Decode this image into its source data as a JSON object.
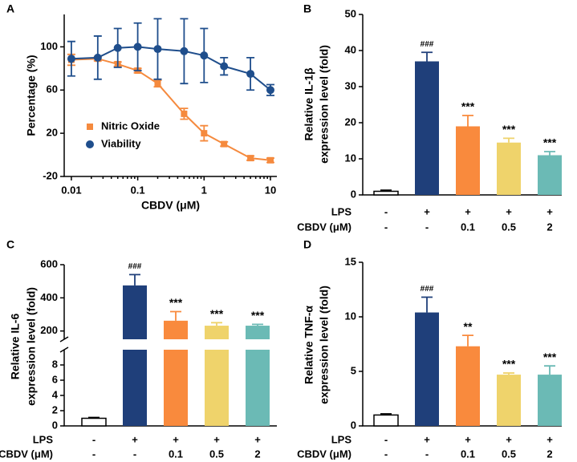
{
  "chart_data": [
    {
      "type": "scatter",
      "label": "A",
      "xlabel": "CBDV (μM)",
      "ylabel": [
        "Percentage (%)"
      ],
      "x": [
        0.01,
        0.025,
        0.05,
        0.1,
        0.2,
        0.5,
        1,
        2,
        5,
        10
      ],
      "xscale": "log",
      "xlim": [
        0.0078,
        12.5
      ],
      "xticks": [
        0.01,
        0.1,
        1,
        10
      ],
      "ylim": [
        -20,
        130
      ],
      "yticks": [
        -20,
        20,
        60,
        100
      ],
      "legend": "lower left",
      "series": [
        {
          "name": "Nitric Oxide",
          "color": "#f58a3e",
          "marker": "square",
          "values": [
            88,
            89,
            84,
            78,
            66,
            38,
            20,
            10,
            -3,
            -5
          ],
          "errors": [
            5,
            2,
            2,
            2,
            3,
            5,
            7,
            2,
            2,
            2
          ]
        },
        {
          "name": "Viability",
          "color": "#1f4e8c",
          "marker": "circle",
          "values": [
            89,
            90,
            99,
            100,
            98,
            96,
            92,
            82,
            75,
            60
          ],
          "errors": [
            16,
            20,
            18,
            22,
            28,
            30,
            25,
            8,
            15,
            5
          ]
        }
      ]
    },
    {
      "type": "bar",
      "label": "B",
      "ylabel": [
        "Relative IL-1β",
        "expression level (fold)"
      ],
      "ylim": [
        0,
        50
      ],
      "yticks": [
        0,
        10,
        20,
        30,
        40,
        50
      ],
      "values": [
        1,
        37,
        19,
        14.5,
        11
      ],
      "errors": [
        0.3,
        2.5,
        3,
        1.2,
        1
      ],
      "colors": [
        "#ffffff",
        "#1f3f7a",
        "#f98a3d",
        "#efd36b",
        "#6bbab5"
      ],
      "annotations": [
        null,
        "###",
        "***",
        "***",
        "***"
      ],
      "treatments": [
        {
          "label": "LPS",
          "values": [
            "-",
            "+",
            "+",
            "+",
            "+"
          ]
        },
        {
          "label": "CBDV (μM)",
          "values": [
            "-",
            "-",
            "0.1",
            "0.5",
            "2"
          ]
        }
      ]
    },
    {
      "type": "broken_bar",
      "label": "C",
      "ylabel": [
        "Relative IL-6",
        "expression level (fold)"
      ],
      "ylim_lower": [
        0,
        10
      ],
      "yticks_lower": [
        0,
        2,
        4,
        6,
        8
      ],
      "ylim_upper": [
        150,
        600
      ],
      "yticks_upper": [
        200,
        400,
        600
      ],
      "values": [
        1,
        475,
        262,
        232,
        232
      ],
      "errors": [
        0.1,
        65,
        55,
        18,
        8
      ],
      "colors": [
        "#ffffff",
        "#1f3f7a",
        "#f98a3d",
        "#efd36b",
        "#6bbab5"
      ],
      "annotations": [
        null,
        "###",
        "***",
        "***",
        "***"
      ],
      "treatments": [
        {
          "label": "LPS",
          "values": [
            "-",
            "+",
            "+",
            "+",
            "+"
          ]
        },
        {
          "label": "CBDV (μM)",
          "values": [
            "-",
            "-",
            "0.1",
            "0.5",
            "2"
          ]
        }
      ]
    },
    {
      "type": "bar",
      "label": "D",
      "ylabel": [
        "Relative TNF-α",
        "expression level (fold)"
      ],
      "ylim": [
        0,
        15
      ],
      "yticks": [
        0,
        5,
        10,
        15
      ],
      "values": [
        1,
        10.4,
        7.3,
        4.7,
        4.7
      ],
      "errors": [
        0.1,
        1.4,
        1.0,
        0.15,
        0.8
      ],
      "colors": [
        "#ffffff",
        "#1f3f7a",
        "#f98a3d",
        "#efd36b",
        "#6bbab5"
      ],
      "annotations": [
        null,
        "###",
        "**",
        "***",
        "***"
      ],
      "treatments": [
        {
          "label": "LPS",
          "values": [
            "-",
            "+",
            "+",
            "+",
            "+"
          ]
        },
        {
          "label": "CBDV (μM)",
          "values": [
            "-",
            "-",
            "0.1",
            "0.5",
            "2"
          ]
        }
      ]
    }
  ]
}
